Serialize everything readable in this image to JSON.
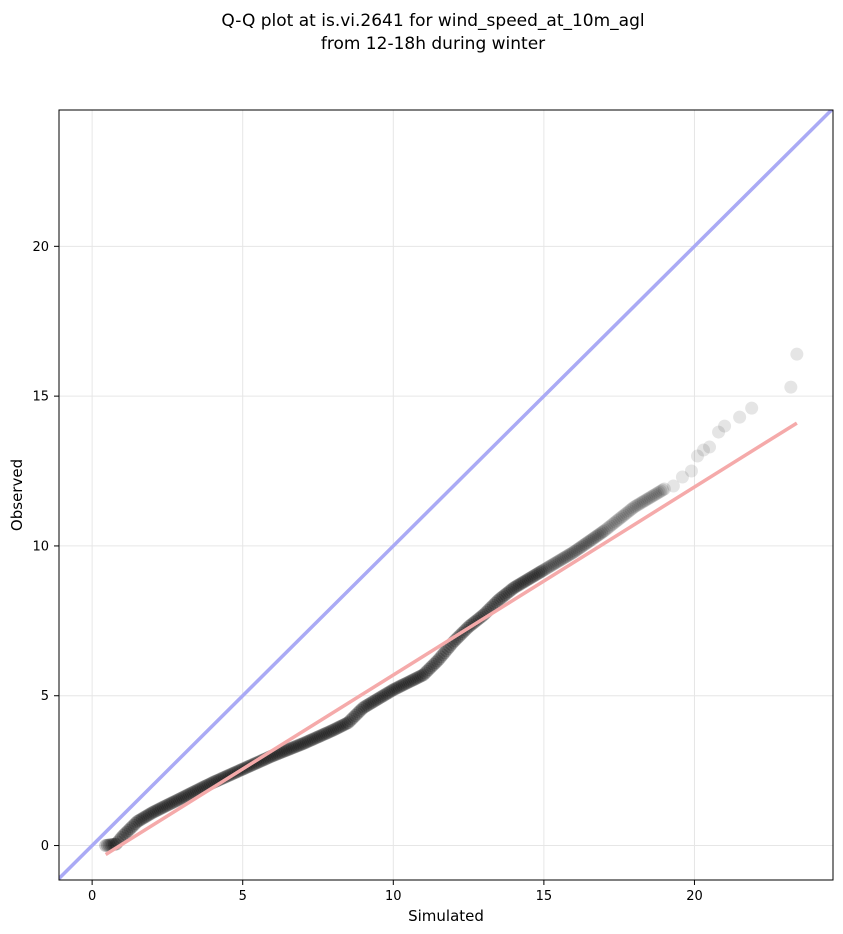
{
  "chart_data": {
    "type": "scatter",
    "title_line1": "Q-Q plot at is.vi.2641 for wind_speed_at_10m_agl",
    "title_line2": "from 12-18h during winter",
    "xlabel": "Simulated",
    "ylabel": "Observed",
    "xlim": [
      -1.1,
      24.6
    ],
    "ylim": [
      -1.15,
      24.55
    ],
    "xticks": [
      0,
      5,
      10,
      15,
      20
    ],
    "yticks": [
      0,
      5,
      10,
      15,
      20
    ],
    "grid": true,
    "colors": {
      "points": "#000000",
      "identity_line": "#aaaaf5",
      "fit_line": "#f5aaaa"
    },
    "identity_line": {
      "x": [
        -1.1,
        24.6
      ],
      "y": [
        -1.1,
        24.6
      ]
    },
    "fit_line": {
      "x": [
        0.45,
        23.4
      ],
      "y": [
        -0.3,
        14.1
      ]
    },
    "quantiles_curve": {
      "x": [
        0.45,
        0.8,
        1.0,
        1.5,
        2.0,
        3.0,
        4.0,
        5.0,
        6.0,
        7.0,
        8.0,
        8.5,
        9.0,
        10.0,
        11.0,
        11.5,
        12.0,
        12.5,
        13.0,
        13.5,
        14.0,
        14.5,
        15.0,
        16.0,
        17.0,
        18.0,
        19.0
      ],
      "y": [
        0.0,
        0.05,
        0.3,
        0.8,
        1.1,
        1.6,
        2.1,
        2.55,
        3.0,
        3.4,
        3.85,
        4.1,
        4.6,
        5.2,
        5.7,
        6.2,
        6.8,
        7.3,
        7.7,
        8.2,
        8.6,
        8.9,
        9.2,
        9.8,
        10.5,
        11.3,
        11.9
      ]
    },
    "tail_points": {
      "x": [
        19.3,
        19.6,
        19.9,
        20.1,
        20.3,
        20.5,
        20.8,
        21.0,
        21.5,
        21.9,
        23.2,
        23.4
      ],
      "y": [
        12.0,
        12.3,
        12.5,
        13.0,
        13.2,
        13.3,
        13.8,
        14.0,
        14.3,
        14.6,
        15.3,
        16.4
      ]
    }
  }
}
